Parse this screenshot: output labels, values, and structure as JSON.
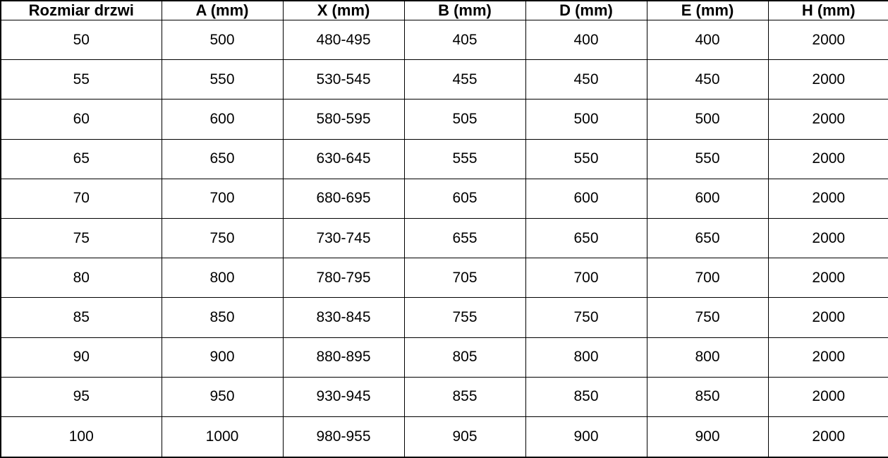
{
  "table": {
    "headers": [
      "Rozmiar drzwi",
      "A (mm)",
      "X (mm)",
      "B (mm)",
      "D (mm)",
      "E (mm)",
      "H (mm)"
    ],
    "rows": [
      [
        "50",
        "500",
        "480-495",
        "405",
        "400",
        "400",
        "2000"
      ],
      [
        "55",
        "550",
        "530-545",
        "455",
        "450",
        "450",
        "2000"
      ],
      [
        "60",
        "600",
        "580-595",
        "505",
        "500",
        "500",
        "2000"
      ],
      [
        "65",
        "650",
        "630-645",
        "555",
        "550",
        "550",
        "2000"
      ],
      [
        "70",
        "700",
        "680-695",
        "605",
        "600",
        "600",
        "2000"
      ],
      [
        "75",
        "750",
        "730-745",
        "655",
        "650",
        "650",
        "2000"
      ],
      [
        "80",
        "800",
        "780-795",
        "705",
        "700",
        "700",
        "2000"
      ],
      [
        "85",
        "850",
        "830-845",
        "755",
        "750",
        "750",
        "2000"
      ],
      [
        "90",
        "900",
        "880-895",
        "805",
        "800",
        "800",
        "2000"
      ],
      [
        "95",
        "950",
        "930-945",
        "855",
        "850",
        "850",
        "2000"
      ],
      [
        "100",
        "1000",
        "980-955",
        "905",
        "900",
        "900",
        "2000"
      ]
    ]
  },
  "colors": {
    "text": "#000000",
    "border": "#000000",
    "background": "#ffffff"
  }
}
